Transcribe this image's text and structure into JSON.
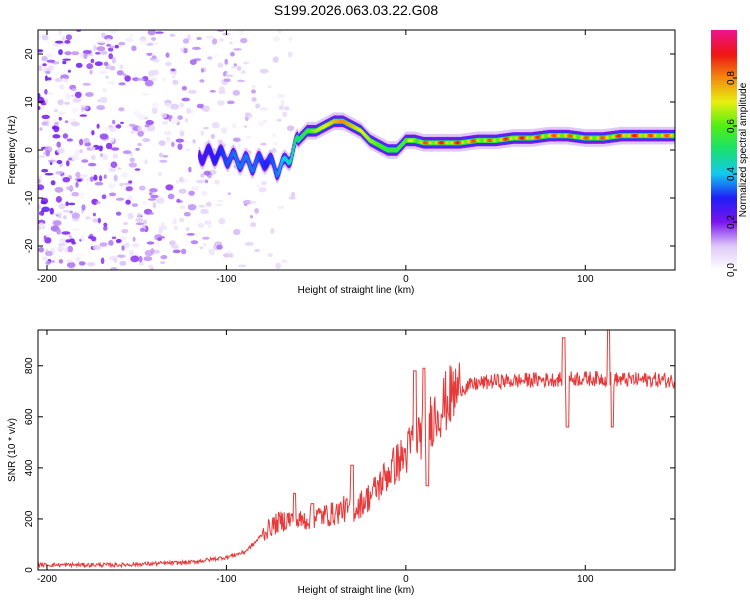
{
  "title": "S199.2026.063.03.22.G08",
  "colors": {
    "snr_line": "#e8393a",
    "axis": "#000000",
    "background": "#ffffff"
  },
  "chart_data": [
    {
      "type": "heatmap",
      "title": "S199.2026.063.03.22.G08",
      "xlabel": "Height of straight line (km)",
      "ylabel": "Frequency (Hz)",
      "xlim": [
        -205,
        150
      ],
      "ylim": [
        -25,
        25
      ],
      "xticks": [
        -200,
        -100,
        0,
        100
      ],
      "yticks": [
        -20,
        -10,
        0,
        10,
        20
      ],
      "colorbar": {
        "label": "Normalized spectral amplitude",
        "ticks": [
          0.0,
          0.2,
          0.4,
          0.6,
          0.8
        ],
        "range": [
          0,
          1
        ],
        "colormap": "rainbow (white-violet-blue-cyan-green-yellow-red-magenta)"
      },
      "ridge": {
        "description": "dominant frequency ridge",
        "x": [
          -115,
          -105,
          -95,
          -85,
          -78,
          -72,
          -68,
          -64,
          -60,
          -55,
          -50,
          -45,
          -40,
          -35,
          -30,
          -25,
          -20,
          -15,
          -10,
          -5,
          0,
          5,
          10,
          20,
          30,
          40,
          50,
          60,
          70,
          80,
          90,
          100,
          110,
          120,
          130,
          140,
          150
        ],
        "frequency": [
          -1,
          -1,
          -2,
          -3,
          -2,
          -4,
          -3,
          -1,
          2,
          4,
          4,
          5,
          6,
          6,
          5,
          4,
          2,
          1,
          0,
          0,
          2,
          2,
          1.5,
          1.5,
          1.5,
          2,
          2,
          2.5,
          2.5,
          3,
          3,
          2.5,
          2.5,
          3,
          3,
          3,
          3
        ],
        "amplitude": [
          0.25,
          0.3,
          0.35,
          0.35,
          0.3,
          0.35,
          0.4,
          0.45,
          0.5,
          0.55,
          0.65,
          0.7,
          0.75,
          0.8,
          0.75,
          0.7,
          0.65,
          0.6,
          0.55,
          0.55,
          0.6,
          0.8,
          0.85,
          0.9,
          0.9,
          0.85,
          0.85,
          0.9,
          0.9,
          0.85,
          0.85,
          0.85,
          0.85,
          0.9,
          0.9,
          0.85,
          0.85
        ]
      },
      "noise_region": {
        "x_range": [
          -205,
          -60
        ],
        "frequency_range": [
          -25,
          25
        ],
        "amplitude_range": [
          0.02,
          0.25
        ]
      }
    },
    {
      "type": "line",
      "xlabel": "Height of straight line (km)",
      "ylabel": "SNR (10 * v/v)",
      "xlim": [
        -205,
        150
      ],
      "ylim": [
        0,
        940
      ],
      "xticks": [
        -200,
        -100,
        0,
        100
      ],
      "yticks": [
        0,
        200,
        400,
        600,
        800
      ],
      "series": [
        {
          "name": "SNR",
          "x": [
            -205,
            -180,
            -160,
            -140,
            -120,
            -110,
            -100,
            -90,
            -85,
            -80,
            -75,
            -70,
            -65,
            -60,
            -55,
            -50,
            -45,
            -40,
            -35,
            -30,
            -25,
            -20,
            -15,
            -10,
            -5,
            0,
            5,
            10,
            15,
            20,
            25,
            30,
            40,
            50,
            60,
            70,
            80,
            90,
            100,
            110,
            120,
            130,
            140,
            150
          ],
          "values": [
            20,
            20,
            20,
            25,
            30,
            40,
            50,
            70,
            100,
            140,
            170,
            190,
            200,
            190,
            200,
            210,
            215,
            220,
            240,
            230,
            260,
            290,
            330,
            380,
            420,
            450,
            520,
            540,
            600,
            640,
            680,
            710,
            730,
            740,
            740,
            745,
            745,
            750,
            750,
            750,
            745,
            745,
            745,
            740
          ]
        }
      ],
      "spikes": [
        {
          "x": -62,
          "value": 300
        },
        {
          "x": -52,
          "value": 260
        },
        {
          "x": -30,
          "value": 410
        },
        {
          "x": 5,
          "value": 780
        },
        {
          "x": 10,
          "value": 790
        },
        {
          "x": 12,
          "value": 330
        },
        {
          "x": 88,
          "value": 910
        },
        {
          "x": 90,
          "value": 560
        },
        {
          "x": 113,
          "value": 940
        },
        {
          "x": 115,
          "value": 560
        }
      ]
    }
  ]
}
